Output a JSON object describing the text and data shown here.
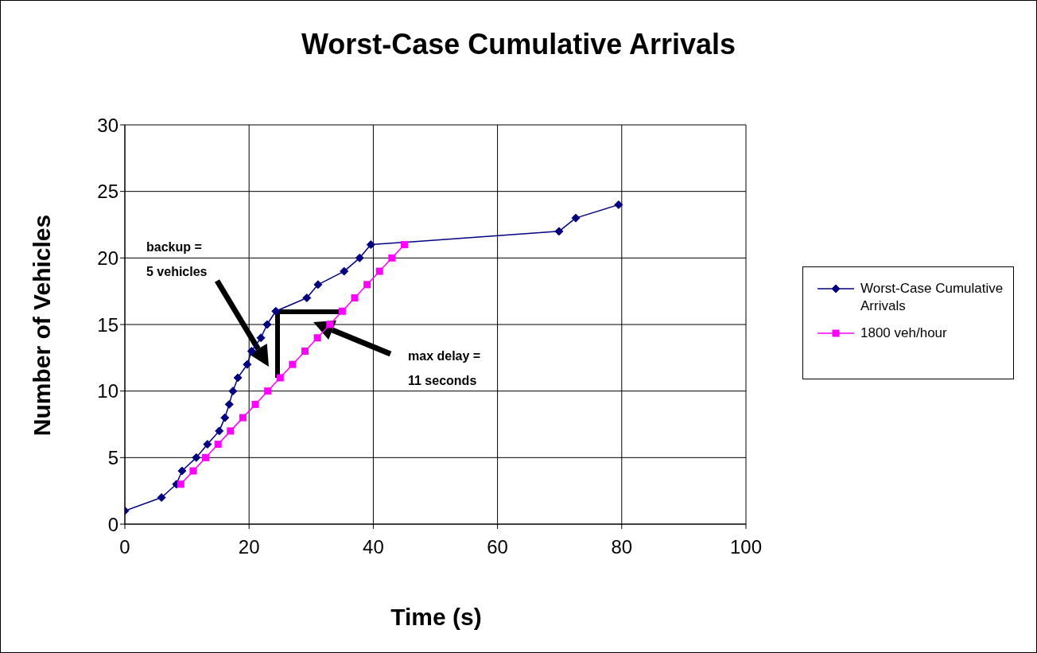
{
  "chart_data": {
    "type": "line",
    "title": "Worst-Case Cumulative Arrivals",
    "xlabel": "Time (s)",
    "ylabel": "Number of Vehicles",
    "xlim": [
      0,
      100
    ],
    "xticks": [
      0,
      20,
      40,
      60,
      80,
      100
    ],
    "ylim": [
      0,
      30
    ],
    "yticks": [
      0,
      5,
      10,
      15,
      20,
      25,
      30
    ],
    "grid": true,
    "legend": "right",
    "annotations": [
      "backup =\n5 vehicles",
      "max delay =\n11 seconds"
    ],
    "series": [
      {
        "name": "Worst-Case Cumulative Arrivals",
        "color": "#000080",
        "marker": "diamond",
        "x": [
          0,
          5.9,
          8.3,
          9.2,
          11.5,
          13.3,
          15.2,
          16.1,
          16.8,
          17.4,
          18.2,
          19.7,
          20.4,
          21.9,
          22.9,
          24.3,
          29.3,
          31.1,
          35.3,
          37.8,
          39.6,
          69.9,
          72.6,
          79.5
        ],
        "values": [
          1,
          2,
          3,
          4,
          5,
          6,
          7,
          8,
          9,
          10,
          11,
          12,
          13,
          14,
          15,
          16,
          17,
          18,
          19,
          20,
          21,
          22,
          23,
          24
        ]
      },
      {
        "name": "1800 veh/hour",
        "color": "#ff00ff",
        "marker": "square",
        "x": [
          9,
          11,
          13,
          15,
          17,
          19,
          21,
          23,
          25,
          27,
          29,
          31,
          33,
          35,
          37,
          39,
          41,
          43,
          45
        ],
        "values": [
          3,
          4,
          5,
          6,
          7,
          8,
          9,
          10,
          11,
          12,
          13,
          14,
          15,
          16,
          17,
          18,
          19,
          20,
          21
        ]
      }
    ]
  }
}
